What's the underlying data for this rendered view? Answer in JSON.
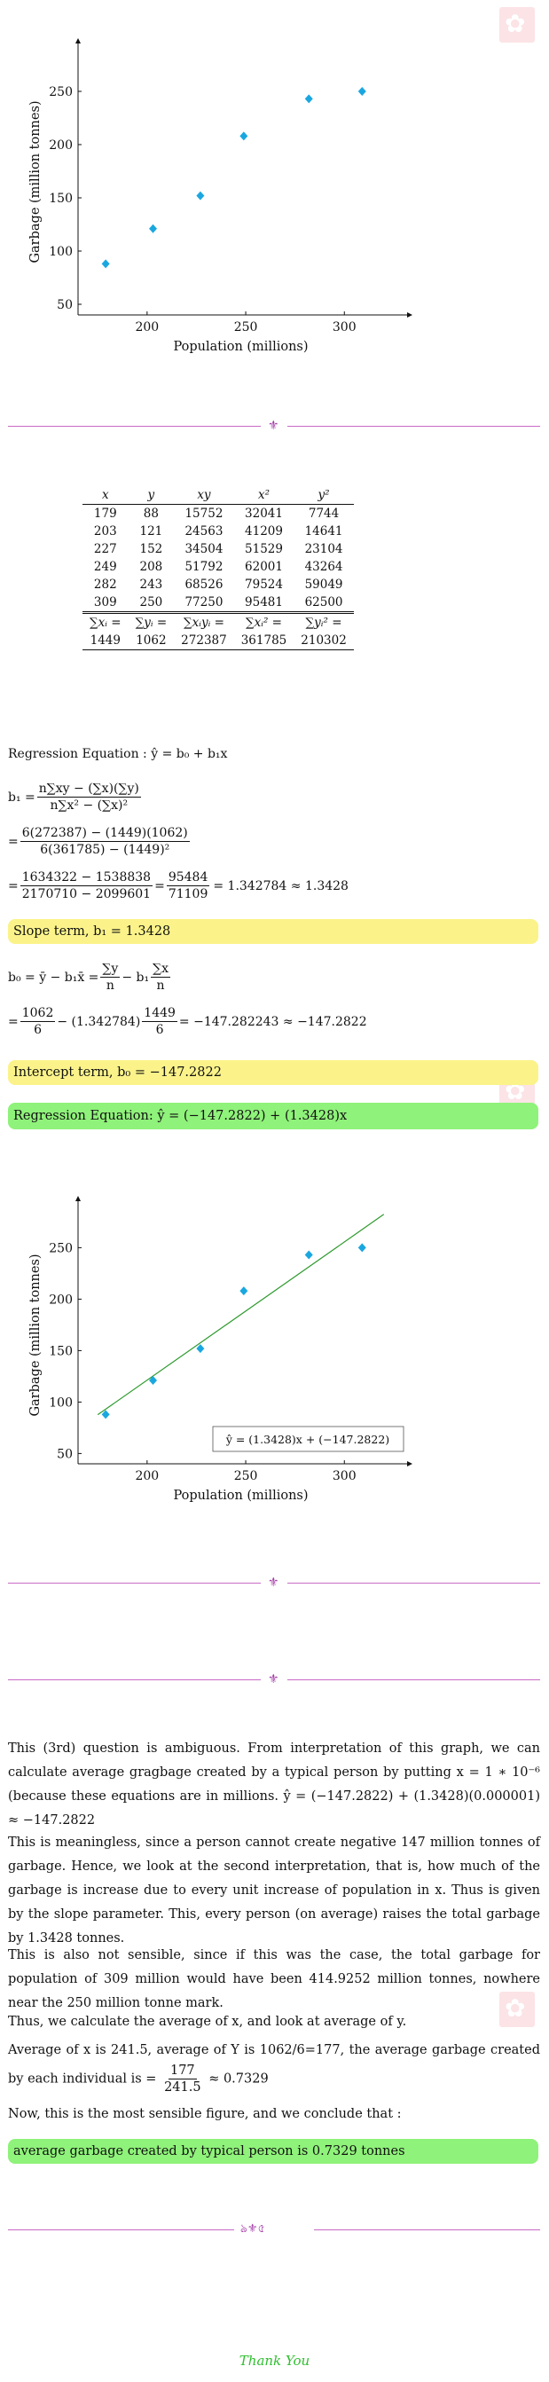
{
  "chart_data": [
    {
      "type": "scatter",
      "xlabel": "Population (millions)",
      "ylabel": "Garbage (million tonnes)",
      "xticks": [
        200,
        250,
        300
      ],
      "yticks": [
        50,
        100,
        150,
        200,
        250
      ],
      "xlim": [
        165,
        330
      ],
      "ylim": [
        40,
        290
      ],
      "points": [
        [
          179,
          88
        ],
        [
          203,
          121
        ],
        [
          227,
          152
        ],
        [
          249,
          208
        ],
        [
          282,
          243
        ],
        [
          309,
          250
        ]
      ],
      "marker_color": "#1aa7e0"
    },
    {
      "type": "scatter",
      "xlabel": "Population (millions)",
      "ylabel": "Garbage (million tonnes)",
      "xticks": [
        200,
        250,
        300
      ],
      "yticks": [
        50,
        100,
        150,
        200,
        250
      ],
      "xlim": [
        165,
        330
      ],
      "ylim": [
        40,
        290
      ],
      "points": [
        [
          179,
          88
        ],
        [
          203,
          121
        ],
        [
          227,
          152
        ],
        [
          249,
          208
        ],
        [
          282,
          243
        ],
        [
          309,
          250
        ]
      ],
      "marker_color": "#1aa7e0",
      "regression_line": {
        "intercept": -147.2822,
        "slope": 1.3428,
        "color": "#2e9a2e"
      },
      "legend": "ŷ = (1.3428)x + (−147.2822)",
      "legend_position": "bottom-right"
    }
  ],
  "table": {
    "headers": [
      "x",
      "y",
      "xy",
      "x²",
      "y²"
    ],
    "rows": [
      [
        "179",
        "88",
        "15752",
        "32041",
        "7744"
      ],
      [
        "203",
        "121",
        "24563",
        "41209",
        "14641"
      ],
      [
        "227",
        "152",
        "34504",
        "51529",
        "23104"
      ],
      [
        "249",
        "208",
        "51792",
        "62001",
        "43264"
      ],
      [
        "282",
        "243",
        "68526",
        "79524",
        "59049"
      ],
      [
        "309",
        "250",
        "77250",
        "95481",
        "62500"
      ]
    ],
    "sum_labels": [
      "∑xᵢ =",
      "∑yᵢ =",
      "∑xᵢyᵢ =",
      "∑xᵢ² =",
      "∑yᵢ² ="
    ],
    "sums": [
      "1449",
      "1062",
      "272387",
      "361785",
      "210302"
    ]
  },
  "math": {
    "regression_eq": "Regression Equation : ŷ = b₀ + b₁x",
    "b1_label": "b₁ =",
    "b1_num": "n∑xy − (∑x)(∑y)",
    "b1_den": "n∑x² − (∑x)²",
    "step1_num": "6(272387) − (1449)(1062)",
    "step1_den": "6(361785) − (1449)²",
    "step2_num1": "1634322 − 1538838",
    "step2_den1": "2170710 − 2099601",
    "step2_num2": "95484",
    "step2_den2": "71109",
    "step2_result": "= 1.342784 ≈ 1.3428",
    "b0_label": "b₀ = ȳ − b₁x̄ =",
    "b0_num_y": "∑y",
    "b0_den_n": "n",
    "b0_minus": "− b₁",
    "b0_num_x": "∑x",
    "step3_prefix": "=",
    "step3_num1": "1062",
    "step3_den1": "6",
    "step3_mid": "− (1.342784)",
    "step3_num2": "1449",
    "step3_den2": "6",
    "step3_result": "= −147.282243 ≈ −147.2822"
  },
  "boxes": {
    "slope": "Slope term, b₁ = 1.3428",
    "intercept": "Intercept term, b₀ = −147.2822",
    "regression": "Regression Equation: ŷ = (−147.2822) + (1.3428)x",
    "final": "average garbage created by typical person is 0.7329 tonnes"
  },
  "paragraphs": {
    "p1": "This (3rd) question is ambiguous. From interpretation of this graph, we can calculate average gragbage created by a typical person by putting x = 1 ∗ 10⁻⁶ (because these equations are in millions. ŷ = (−147.2822) + (1.3428)(0.000001) ≈ −147.2822",
    "p2": "This is meaningless, since a person cannot create negative 147 million tonnes of garbage. Hence, we look at the second interpretation, that is, how much of the garbage is increase due to every unit increase of population in x. Thus is given by the slope parameter. This, every person (on average) raises the total garbage by 1.3428 tonnes.",
    "p3": "This is also not sensible, since if this was the case, the total garbage for population of 309 million would have been 414.9252 million tonnes, nowhere near the 250 million tonne mark.",
    "p4": "Thus, we calculate the average of x, and look at average of y.",
    "p5a": "Average of x is 241.5, average of Y is 1062/6=177, the average garbage created by each individual is =",
    "p5_num": "177",
    "p5_den": "241.5",
    "p5b": "≈ 0.7329",
    "p6": "Now, this is the most sensible figure, and we conclude that :"
  },
  "footer": {
    "thanks": "Thank You",
    "thanks_color": "#2fbf2f"
  },
  "colors": {
    "divider": "#c86ac6",
    "yellow_box": "#fbf38a",
    "green_box": "#8ff27a"
  }
}
